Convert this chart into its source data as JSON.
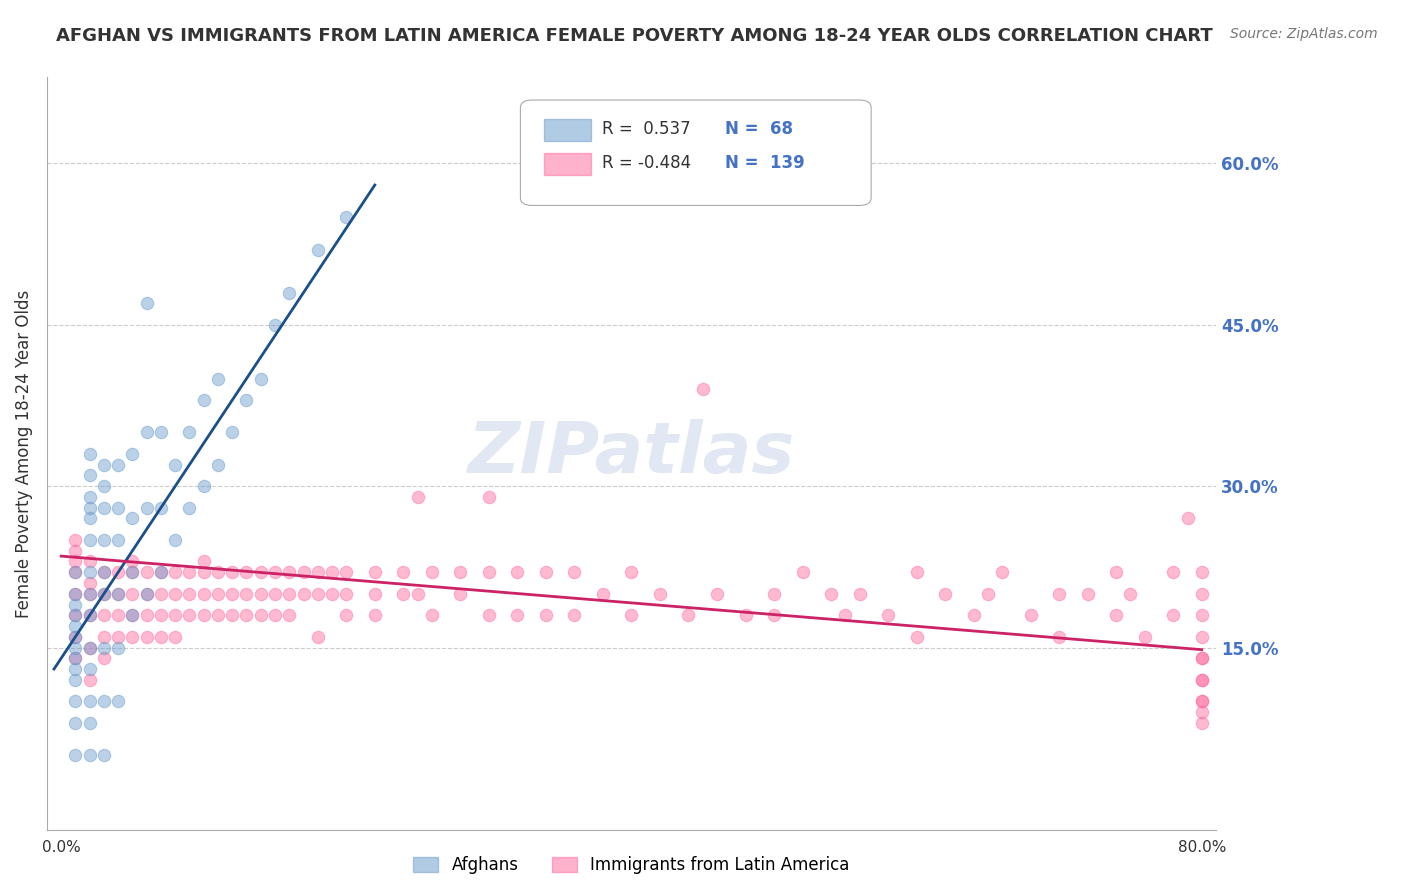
{
  "title": "AFGHAN VS IMMIGRANTS FROM LATIN AMERICA FEMALE POVERTY AMONG 18-24 YEAR OLDS CORRELATION CHART",
  "source": "Source: ZipAtlas.com",
  "ylabel": "Female Poverty Among 18-24 Year Olds",
  "xlabel": "",
  "xlim": [
    0.0,
    0.8
  ],
  "ylim": [
    -0.02,
    0.68
  ],
  "yticks_right": [
    0.15,
    0.3,
    0.45,
    0.6
  ],
  "ytick_labels_right": [
    "15.0%",
    "30.0%",
    "45.0%",
    "60.0%"
  ],
  "xticks": [
    0.0,
    0.1,
    0.2,
    0.3,
    0.4,
    0.5,
    0.6,
    0.7,
    0.8
  ],
  "xtick_labels": [
    "0.0%",
    "",
    "",
    "",
    "",
    "",
    "",
    "",
    "80.0%"
  ],
  "grid_color": "#cccccc",
  "background_color": "#ffffff",
  "blue_color": "#6699cc",
  "pink_color": "#ff6699",
  "legend_R_blue": "0.537",
  "legend_N_blue": "68",
  "legend_R_pink": "-0.484",
  "legend_N_pink": "139",
  "watermark": "ZIPatlas",
  "legend_label_blue": "Afghans",
  "legend_label_pink": "Immigrants from Latin America",
  "blue_scatter": {
    "x": [
      0.01,
      0.01,
      0.01,
      0.01,
      0.01,
      0.01,
      0.01,
      0.01,
      0.01,
      0.01,
      0.01,
      0.01,
      0.01,
      0.02,
      0.02,
      0.02,
      0.02,
      0.02,
      0.02,
      0.02,
      0.02,
      0.02,
      0.02,
      0.02,
      0.02,
      0.02,
      0.02,
      0.03,
      0.03,
      0.03,
      0.03,
      0.03,
      0.03,
      0.03,
      0.03,
      0.03,
      0.04,
      0.04,
      0.04,
      0.04,
      0.04,
      0.04,
      0.05,
      0.05,
      0.05,
      0.05,
      0.06,
      0.06,
      0.06,
      0.06,
      0.07,
      0.07,
      0.07,
      0.08,
      0.08,
      0.09,
      0.09,
      0.1,
      0.1,
      0.11,
      0.11,
      0.12,
      0.13,
      0.14,
      0.15,
      0.16,
      0.18,
      0.2
    ],
    "y": [
      0.05,
      0.08,
      0.1,
      0.12,
      0.13,
      0.14,
      0.15,
      0.16,
      0.17,
      0.18,
      0.19,
      0.2,
      0.22,
      0.05,
      0.08,
      0.1,
      0.13,
      0.15,
      0.18,
      0.2,
      0.22,
      0.25,
      0.27,
      0.28,
      0.29,
      0.31,
      0.33,
      0.05,
      0.1,
      0.15,
      0.2,
      0.22,
      0.25,
      0.28,
      0.3,
      0.32,
      0.1,
      0.15,
      0.2,
      0.25,
      0.28,
      0.32,
      0.18,
      0.22,
      0.27,
      0.33,
      0.2,
      0.28,
      0.35,
      0.47,
      0.22,
      0.28,
      0.35,
      0.25,
      0.32,
      0.28,
      0.35,
      0.3,
      0.38,
      0.32,
      0.4,
      0.35,
      0.38,
      0.4,
      0.45,
      0.48,
      0.52,
      0.55
    ]
  },
  "pink_scatter": {
    "x": [
      0.01,
      0.01,
      0.01,
      0.01,
      0.01,
      0.01,
      0.01,
      0.01,
      0.02,
      0.02,
      0.02,
      0.02,
      0.02,
      0.02,
      0.03,
      0.03,
      0.03,
      0.03,
      0.03,
      0.04,
      0.04,
      0.04,
      0.04,
      0.05,
      0.05,
      0.05,
      0.05,
      0.05,
      0.06,
      0.06,
      0.06,
      0.06,
      0.07,
      0.07,
      0.07,
      0.07,
      0.08,
      0.08,
      0.08,
      0.08,
      0.09,
      0.09,
      0.09,
      0.1,
      0.1,
      0.1,
      0.1,
      0.11,
      0.11,
      0.11,
      0.12,
      0.12,
      0.12,
      0.13,
      0.13,
      0.13,
      0.14,
      0.14,
      0.14,
      0.15,
      0.15,
      0.15,
      0.16,
      0.16,
      0.16,
      0.17,
      0.17,
      0.18,
      0.18,
      0.18,
      0.19,
      0.19,
      0.2,
      0.2,
      0.2,
      0.22,
      0.22,
      0.22,
      0.24,
      0.24,
      0.25,
      0.25,
      0.26,
      0.26,
      0.28,
      0.28,
      0.3,
      0.3,
      0.3,
      0.32,
      0.32,
      0.34,
      0.34,
      0.36,
      0.36,
      0.38,
      0.4,
      0.4,
      0.42,
      0.44,
      0.45,
      0.46,
      0.48,
      0.5,
      0.5,
      0.52,
      0.54,
      0.55,
      0.56,
      0.58,
      0.6,
      0.6,
      0.62,
      0.64,
      0.65,
      0.66,
      0.68,
      0.7,
      0.7,
      0.72,
      0.74,
      0.74,
      0.75,
      0.76,
      0.78,
      0.78,
      0.79,
      0.8,
      0.8,
      0.8,
      0.8,
      0.8,
      0.8,
      0.8,
      0.8,
      0.8,
      0.8,
      0.8,
      0.8
    ],
    "y": [
      0.2,
      0.22,
      0.23,
      0.24,
      0.25,
      0.18,
      0.16,
      0.14,
      0.21,
      0.23,
      0.18,
      0.15,
      0.12,
      0.2,
      0.22,
      0.18,
      0.16,
      0.14,
      0.2,
      0.22,
      0.18,
      0.16,
      0.2,
      0.22,
      0.23,
      0.2,
      0.18,
      0.16,
      0.2,
      0.22,
      0.18,
      0.16,
      0.22,
      0.2,
      0.18,
      0.16,
      0.22,
      0.2,
      0.18,
      0.16,
      0.22,
      0.2,
      0.18,
      0.22,
      0.23,
      0.2,
      0.18,
      0.22,
      0.2,
      0.18,
      0.22,
      0.2,
      0.18,
      0.22,
      0.2,
      0.18,
      0.22,
      0.2,
      0.18,
      0.22,
      0.2,
      0.18,
      0.22,
      0.2,
      0.18,
      0.22,
      0.2,
      0.22,
      0.2,
      0.16,
      0.22,
      0.2,
      0.22,
      0.2,
      0.18,
      0.22,
      0.2,
      0.18,
      0.22,
      0.2,
      0.29,
      0.2,
      0.22,
      0.18,
      0.22,
      0.2,
      0.29,
      0.22,
      0.18,
      0.22,
      0.18,
      0.22,
      0.18,
      0.22,
      0.18,
      0.2,
      0.22,
      0.18,
      0.2,
      0.18,
      0.39,
      0.2,
      0.18,
      0.2,
      0.18,
      0.22,
      0.2,
      0.18,
      0.2,
      0.18,
      0.22,
      0.16,
      0.2,
      0.18,
      0.2,
      0.22,
      0.18,
      0.2,
      0.16,
      0.2,
      0.22,
      0.18,
      0.2,
      0.16,
      0.22,
      0.18,
      0.27,
      0.2,
      0.18,
      0.22,
      0.16,
      0.14,
      0.12,
      0.1,
      0.14,
      0.12,
      0.1,
      0.08,
      0.09
    ]
  },
  "blue_trendline": {
    "x_start": -0.005,
    "x_end": 0.22,
    "y_start": 0.13,
    "y_end": 0.58
  },
  "pink_trendline": {
    "x_start": 0.0,
    "x_end": 0.8,
    "y_start": 0.235,
    "y_end": 0.148
  }
}
